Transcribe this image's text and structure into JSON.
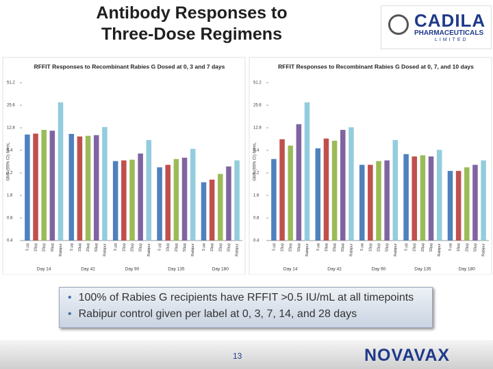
{
  "slide": {
    "title": [
      "Antibody Responses to",
      "Three-Dose Regimens"
    ],
    "logo": [
      "CADILA",
      "PHARMACEUTICALS",
      "LIMITED"
    ],
    "bullets": [
      "100% of Rabies G recipients have RFFIT >0.5 IU/mL at all timepoints",
      "Rabipur control given per label at 0, 3, 7, 14, and 28 days"
    ],
    "page_number": "13",
    "footer_logo": "NOVAVAX"
  },
  "chart_data": [
    {
      "type": "bar",
      "title": "RFFIT Responses to Recombinant Rabies G Dosed at 0, 3 and 7 days",
      "y_label": "GMT (95% CI) IU/mL",
      "yscale": "log",
      "ylim": [
        0.4,
        51.2
      ],
      "yticks": [
        0.4,
        0.8,
        1.6,
        3.2,
        6.4,
        12.8,
        25.6,
        51.2
      ],
      "categories": [
        "Day 14",
        "Day 42",
        "Day 90",
        "Day 135",
        "Day 180"
      ],
      "series": [
        {
          "name": "5 µg",
          "color": "#4f81bd",
          "values": [
            10.4,
            10.6,
            4.6,
            3.8,
            2.4
          ]
        },
        {
          "name": "10µg",
          "color": "#c0504d",
          "values": [
            10.7,
            9.8,
            4.7,
            4.1,
            2.6
          ]
        },
        {
          "name": "20µg",
          "color": "#9bbb59",
          "values": [
            12,
            10,
            4.8,
            4.9,
            3.1
          ]
        },
        {
          "name": "50µg",
          "color": "#8064a2",
          "values": [
            11.7,
            10.2,
            5.8,
            5.1,
            3.9
          ]
        },
        {
          "name": "Rabipur",
          "color": "#93cddd",
          "values": [
            28,
            13.1,
            8.8,
            6.7,
            4.7
          ]
        }
      ]
    },
    {
      "type": "bar",
      "title": "RFFIT Responses to Recombinant Rabies G Dosed at 0, 7, and 10 days",
      "y_label": "GMT (95% CI) IU/mL",
      "yscale": "log",
      "ylim": [
        0.4,
        51.2
      ],
      "yticks": [
        0.4,
        0.8,
        1.6,
        3.2,
        6.4,
        12.8,
        25.6,
        51.2
      ],
      "categories": [
        "Day 14",
        "Day 42",
        "Day 90",
        "Day 135",
        "Day 180"
      ],
      "series": [
        {
          "name": "5 µg",
          "color": "#4f81bd",
          "values": [
            4.9,
            6.8,
            4.1,
            5.7,
            3.4
          ]
        },
        {
          "name": "10µg",
          "color": "#c0504d",
          "values": [
            9,
            9.2,
            4.1,
            5.3,
            3.4
          ]
        },
        {
          "name": "20µg",
          "color": "#9bbb59",
          "values": [
            7.4,
            8.6,
            4.6,
            5.5,
            3.8
          ]
        },
        {
          "name": "50µg",
          "color": "#8064a2",
          "values": [
            14.3,
            12,
            4.7,
            5.3,
            4.1
          ]
        },
        {
          "name": "Rabipur",
          "color": "#93cddd",
          "values": [
            28,
            13,
            8.8,
            6.5,
            4.7
          ]
        }
      ]
    }
  ]
}
